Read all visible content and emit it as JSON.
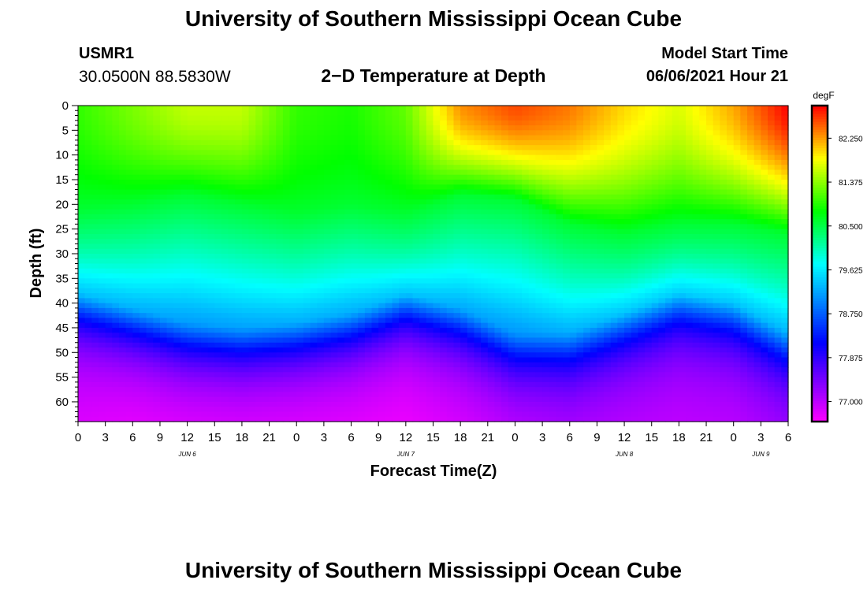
{
  "header": {
    "title": "University of Southern Mississippi Ocean Cube",
    "station_id": "USMR1",
    "coordinates": "30.0500N  88.5830W",
    "subtitle": "2−D Temperature at Depth",
    "model_start_label": "Model Start Time",
    "model_start_value": "06/06/2021 Hour 21"
  },
  "footer": {
    "title": "University of Southern Mississippi Ocean Cube"
  },
  "chart_data": {
    "type": "heatmap",
    "title": "2−D Temperature at Depth",
    "xlabel": "Forecast Time(Z)",
    "ylabel": "Depth (ft)",
    "x_range_hours": [
      0,
      78
    ],
    "y_range_ft": [
      0,
      64
    ],
    "x_tick_step_hours": 3,
    "x_tick_labels": [
      "0",
      "3",
      "6",
      "9",
      "12",
      "15",
      "18",
      "21",
      "0",
      "3",
      "6",
      "9",
      "12",
      "15",
      "18",
      "21",
      "0",
      "3",
      "6",
      "9",
      "12",
      "15",
      "18",
      "21",
      "0",
      "3",
      "6"
    ],
    "y_ticks": [
      0,
      5,
      10,
      15,
      20,
      25,
      30,
      35,
      40,
      45,
      50,
      55,
      60
    ],
    "date_labels": [
      {
        "hour": 12,
        "text": "JUN 6"
      },
      {
        "hour": 36,
        "text": "JUN 7"
      },
      {
        "hour": 60,
        "text": "JUN 8"
      },
      {
        "hour": 75,
        "text": "JUN 9"
      }
    ],
    "colorbar": {
      "unit": "degF",
      "min": 76.6,
      "max": 82.9,
      "tick_values": [
        77.0,
        77.875,
        78.75,
        79.625,
        80.5,
        81.375,
        82.25
      ],
      "tick_labels": [
        "77.000",
        "77.875",
        "78.750",
        "79.625",
        "80.500",
        "81.375",
        "82.250"
      ]
    },
    "profile_hours": [
      0,
      6,
      12,
      18,
      24,
      30,
      36,
      42,
      48,
      54,
      60,
      66,
      72,
      78
    ],
    "surface_temp_degF": [
      81.0,
      81.3,
      81.6,
      81.6,
      81.0,
      80.9,
      81.2,
      82.3,
      82.6,
      82.4,
      82.0,
      81.7,
      82.2,
      82.9
    ],
    "thermocline_depth_ft": [
      38,
      41,
      44,
      45,
      44,
      42,
      38,
      41,
      46,
      46,
      42,
      38,
      40,
      46
    ],
    "mixed_layer_depth_ft": [
      21,
      20,
      18,
      20,
      22,
      20,
      22,
      18,
      19,
      24,
      26,
      24,
      24,
      26
    ],
    "bottom_temp_degF": [
      76.7,
      76.6,
      76.6,
      76.6,
      76.6,
      76.6,
      76.6,
      76.7,
      76.8,
      76.9,
      76.9,
      76.9,
      76.9,
      77.0
    ]
  }
}
